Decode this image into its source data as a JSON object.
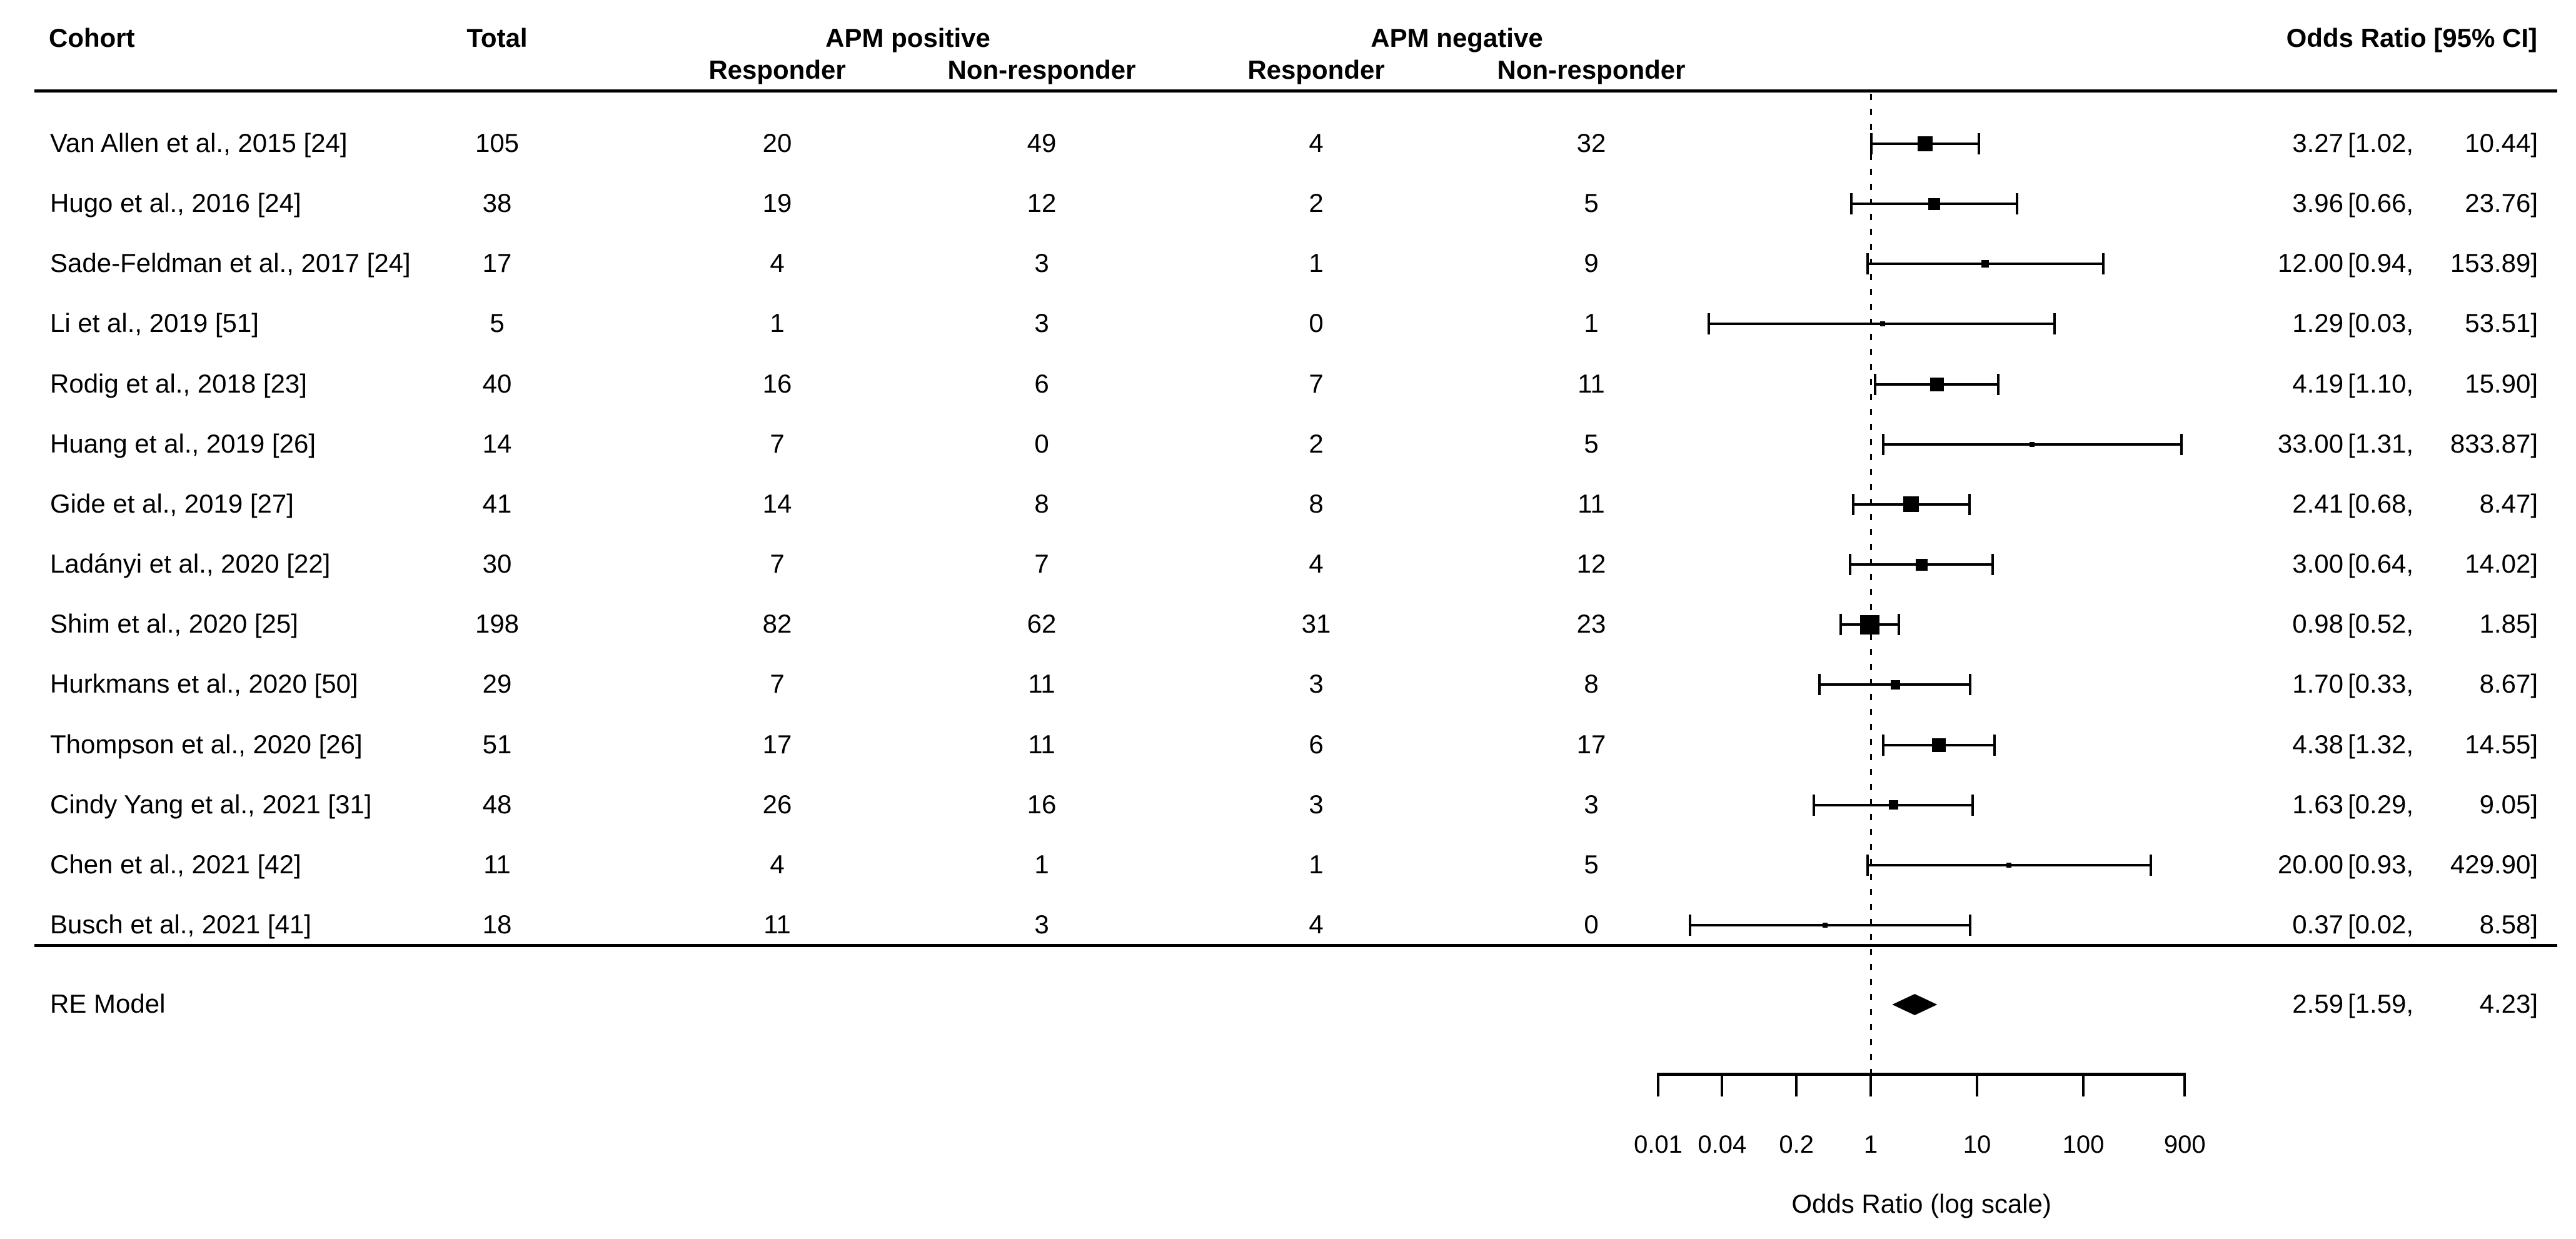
{
  "chart_data": {
    "type": "scatter",
    "subtype": "forest_plot",
    "title": "",
    "legend": "none",
    "grid": false,
    "columns": {
      "cohort": "Cohort",
      "total": "Total",
      "apm_positive": "APM positive",
      "apm_negative": "APM negative",
      "responder": "Responder",
      "non_responder": "Non-responder",
      "odds_ratio_ci": "Odds Ratio [95% CI]"
    },
    "studies": [
      {
        "label": "Van Allen et al., 2015 [24]",
        "total": "105",
        "apm_pos_responder": "20",
        "apm_pos_non_responder": "49",
        "apm_neg_responder": "4",
        "apm_neg_non_responder": "32",
        "or": "3.27",
        "ci_low": "1.02",
        "ci_high": "10.44",
        "marker_size": 24
      },
      {
        "label": "Hugo et al., 2016 [24]",
        "total": "38",
        "apm_pos_responder": "19",
        "apm_pos_non_responder": "12",
        "apm_neg_responder": "2",
        "apm_neg_non_responder": "5",
        "or": "3.96",
        "ci_low": "0.66",
        "ci_high": "23.76",
        "marker_size": 19
      },
      {
        "label": "Sade-Feldman et al., 2017 [24]",
        "total": "17",
        "apm_pos_responder": "4",
        "apm_pos_non_responder": "3",
        "apm_neg_responder": "1",
        "apm_neg_non_responder": "9",
        "or": "12.00",
        "ci_low": "0.94",
        "ci_high": "153.89",
        "marker_size": 12
      },
      {
        "label": "Li et al., 2019 [51]",
        "total": "5",
        "apm_pos_responder": "1",
        "apm_pos_non_responder": "3",
        "apm_neg_responder": "0",
        "apm_neg_non_responder": "1",
        "or": "1.29",
        "ci_low": "0.03",
        "ci_high": "53.51",
        "marker_size": 8
      },
      {
        "label": "Rodig et al., 2018 [23]",
        "total": "40",
        "apm_pos_responder": "16",
        "apm_pos_non_responder": "6",
        "apm_neg_responder": "7",
        "apm_neg_non_responder": "11",
        "or": "4.19",
        "ci_low": "1.10",
        "ci_high": "15.90",
        "marker_size": 22
      },
      {
        "label": "Huang et al., 2019 [26]",
        "total": "14",
        "apm_pos_responder": "7",
        "apm_pos_non_responder": "0",
        "apm_neg_responder": "2",
        "apm_neg_non_responder": "5",
        "or": "33.00",
        "ci_low": "1.31",
        "ci_high": "833.87",
        "marker_size": 8
      },
      {
        "label": "Gide et al., 2019 [27]",
        "total": "41",
        "apm_pos_responder": "14",
        "apm_pos_non_responder": "8",
        "apm_neg_responder": "8",
        "apm_neg_non_responder": "11",
        "or": "2.41",
        "ci_low": "0.68",
        "ci_high": "8.47",
        "marker_size": 25
      },
      {
        "label": "Ladányi et al., 2020 [22]",
        "total": "30",
        "apm_pos_responder": "7",
        "apm_pos_non_responder": "7",
        "apm_neg_responder": "4",
        "apm_neg_non_responder": "12",
        "or": "3.00",
        "ci_low": "0.64",
        "ci_high": "14.02",
        "marker_size": 19
      },
      {
        "label": "Shim et al., 2020 [25]",
        "total": "198",
        "apm_pos_responder": "82",
        "apm_pos_non_responder": "62",
        "apm_neg_responder": "31",
        "apm_neg_non_responder": "23",
        "or": "0.98",
        "ci_low": "0.52",
        "ci_high": "1.85",
        "marker_size": 31
      },
      {
        "label": "Hurkmans et al., 2020 [50]",
        "total": "29",
        "apm_pos_responder": "7",
        "apm_pos_non_responder": "11",
        "apm_neg_responder": "3",
        "apm_neg_non_responder": "8",
        "or": "1.70",
        "ci_low": "0.33",
        "ci_high": "8.67",
        "marker_size": 15
      },
      {
        "label": "Thompson et al., 2020 [26]",
        "total": "51",
        "apm_pos_responder": "17",
        "apm_pos_non_responder": "11",
        "apm_neg_responder": "6",
        "apm_neg_non_responder": "17",
        "or": "4.38",
        "ci_low": "1.32",
        "ci_high": "14.55",
        "marker_size": 22
      },
      {
        "label": "Cindy Yang et al., 2021 [31]",
        "total": "48",
        "apm_pos_responder": "26",
        "apm_pos_non_responder": "16",
        "apm_neg_responder": "3",
        "apm_neg_non_responder": "3",
        "or": "1.63",
        "ci_low": "0.29",
        "ci_high": "9.05",
        "marker_size": 15
      },
      {
        "label": "Chen et al., 2021 [42]",
        "total": "11",
        "apm_pos_responder": "4",
        "apm_pos_non_responder": "1",
        "apm_neg_responder": "1",
        "apm_neg_non_responder": "5",
        "or": "20.00",
        "ci_low": "0.93",
        "ci_high": "429.90",
        "marker_size": 8
      },
      {
        "label": "Busch et al., 2021 [41]",
        "total": "18",
        "apm_pos_responder": "11",
        "apm_pos_non_responder": "3",
        "apm_neg_responder": "4",
        "apm_neg_non_responder": "0",
        "or": "0.37",
        "ci_low": "0.02",
        "ci_high": "8.58",
        "marker_size": 8
      }
    ],
    "re_model": {
      "label": "RE Model",
      "or": "2.59",
      "ci_low": "1.59",
      "ci_high": "4.23"
    },
    "x_axis": {
      "label": "Odds Ratio (log scale)",
      "scale": "log",
      "tick_labels": [
        "0.01",
        "0.04",
        "0.2",
        "1",
        "10",
        "100",
        "900"
      ],
      "tick_values": [
        0.01,
        0.04,
        0.2,
        1,
        10,
        100,
        900
      ],
      "range": [
        0.01,
        900
      ],
      "reference_line": 1
    },
    "colors": {
      "foreground": "#000000",
      "background": "#ffffff"
    }
  }
}
